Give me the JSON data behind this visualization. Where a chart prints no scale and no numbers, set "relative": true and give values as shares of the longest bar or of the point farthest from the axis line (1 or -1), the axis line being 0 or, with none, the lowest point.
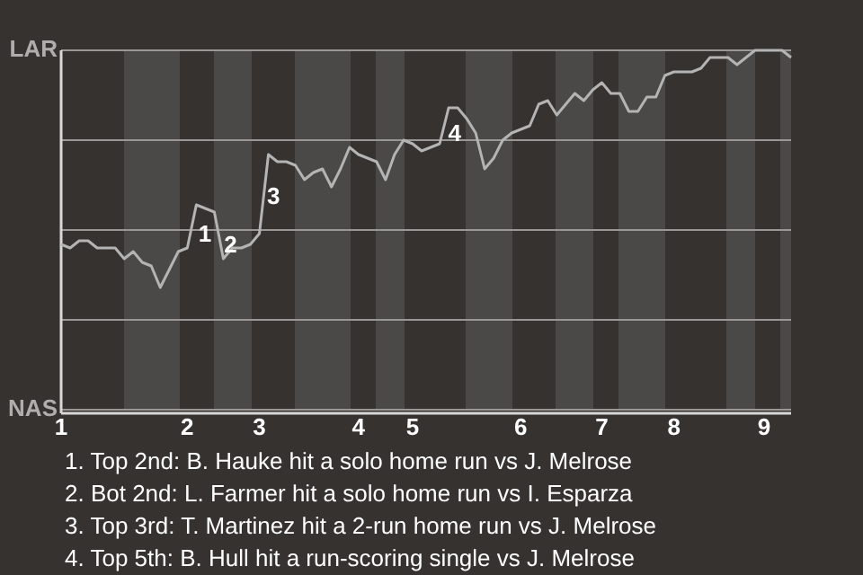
{
  "chart_data": {
    "type": "line",
    "relative": true,
    "categories": [
      "1",
      null,
      null,
      null,
      null,
      null,
      null,
      null,
      null,
      null,
      null,
      null,
      null,
      null,
      "2",
      null,
      null,
      null,
      null,
      null,
      null,
      null,
      "3",
      null,
      null,
      null,
      null,
      null,
      null,
      null,
      null,
      null,
      null,
      "4",
      null,
      null,
      null,
      null,
      null,
      "5",
      null,
      null,
      null,
      null,
      null,
      null,
      null,
      null,
      null,
      null,
      null,
      "6",
      null,
      null,
      null,
      null,
      null,
      null,
      null,
      null,
      "7",
      null,
      null,
      null,
      null,
      null,
      null,
      null,
      "8",
      null,
      null,
      null,
      null,
      null,
      null,
      null,
      null,
      null,
      "9",
      null,
      null,
      null
    ],
    "grid": "y",
    "marker": "none",
    "line_style": "solid",
    "series": [
      {
        "color": "#b4b4b4",
        "values": [
          0.46,
          0.45,
          0.47,
          0.47,
          0.45,
          0.45,
          0.45,
          0.42,
          0.44,
          0.41,
          0.4,
          0.34,
          0.39,
          0.44,
          0.45,
          0.57,
          0.56,
          0.55,
          0.42,
          0.45,
          0.45,
          0.46,
          0.49,
          0.71,
          0.69,
          0.69,
          0.68,
          0.64,
          0.66,
          0.67,
          0.62,
          0.67,
          0.73,
          0.71,
          0.7,
          0.69,
          0.64,
          0.71,
          0.75,
          0.74,
          0.72,
          0.73,
          0.74,
          0.84,
          0.84,
          0.81,
          0.77,
          0.67,
          0.7,
          0.75,
          0.77,
          0.78,
          0.79,
          0.85,
          0.86,
          0.82,
          0.85,
          0.88,
          0.86,
          0.89,
          0.91,
          0.88,
          0.88,
          0.83,
          0.83,
          0.87,
          0.87,
          0.93,
          0.94,
          0.94,
          0.94,
          0.95,
          0.98,
          0.98,
          0.98,
          0.96,
          0.98,
          1,
          1,
          1,
          1,
          0.98
        ]
      }
    ],
    "annotations": [
      "LAR",
      "NAS",
      "1",
      "2",
      "3",
      "4",
      "1. Top 2nd: B. Hauke hit a solo home run vs J. Melrose",
      "2. Bot 2nd: L. Farmer hit a solo home run vs I. Esparza",
      "3. Top 3rd: T. Martinez hit a 2-run home run vs J. Melrose",
      "4. Top 5th: B. Hull hit a run-scoring single vs J. Melrose"
    ]
  }
}
